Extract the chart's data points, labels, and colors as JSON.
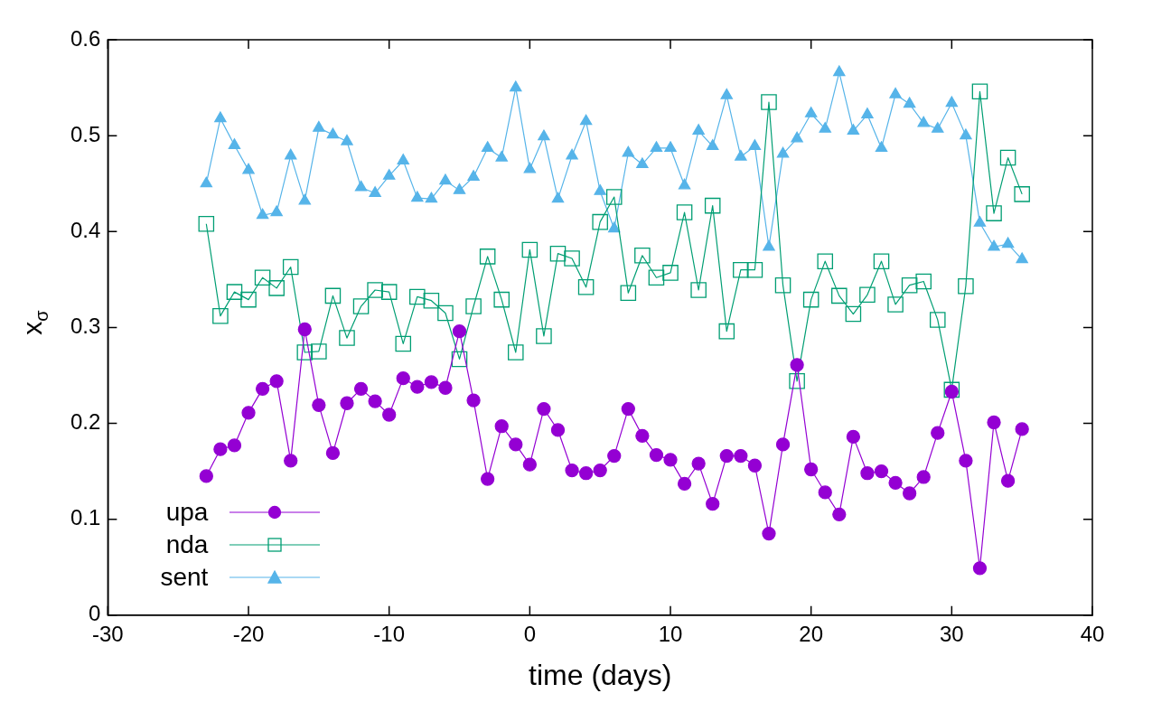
{
  "chart_data": {
    "type": "line",
    "xlabel": "time (days)",
    "ylabel": "x$_{σ}$",
    "x": [
      -23,
      -22,
      -21,
      -20,
      -19,
      -18,
      -17,
      -16,
      -15,
      -14,
      -13,
      -12,
      -11,
      -10,
      -9,
      -8,
      -7,
      -6,
      -5,
      -4,
      -3,
      -2,
      -1,
      0,
      1,
      2,
      3,
      4,
      5,
      6,
      7,
      8,
      9,
      10,
      11,
      12,
      13,
      14,
      15,
      16,
      17,
      18,
      19,
      20,
      21,
      22,
      23,
      24,
      25,
      26,
      27,
      28,
      29,
      30,
      31,
      32,
      33,
      34,
      35
    ],
    "series": [
      {
        "name": "upa",
        "color": "#9400d3",
        "marker": "circle",
        "values": [
          0.145,
          0.173,
          0.177,
          0.211,
          0.236,
          0.244,
          0.161,
          0.298,
          0.219,
          0.169,
          0.221,
          0.236,
          0.223,
          0.209,
          0.247,
          0.238,
          0.243,
          0.237,
          0.296,
          0.224,
          0.142,
          0.197,
          0.178,
          0.157,
          0.215,
          0.193,
          0.151,
          0.148,
          0.151,
          0.166,
          0.215,
          0.187,
          0.167,
          0.162,
          0.137,
          0.158,
          0.116,
          0.166,
          0.166,
          0.156,
          0.085,
          0.178,
          0.261,
          0.152,
          0.128,
          0.105,
          0.186,
          0.148,
          0.15,
          0.138,
          0.127,
          0.144,
          0.19,
          0.233,
          0.161,
          0.049,
          0.201,
          0.14,
          0.194
        ]
      },
      {
        "name": "nda",
        "color": "#009e73",
        "marker": "square",
        "values": [
          0.408,
          0.312,
          0.337,
          0.329,
          0.352,
          0.341,
          0.363,
          0.274,
          0.275,
          0.333,
          0.289,
          0.322,
          0.339,
          0.337,
          0.283,
          0.332,
          0.328,
          0.315,
          0.267,
          0.322,
          0.374,
          0.329,
          0.274,
          0.381,
          0.291,
          0.377,
          0.372,
          0.342,
          0.41,
          0.436,
          0.336,
          0.375,
          0.352,
          0.357,
          0.42,
          0.339,
          0.427,
          0.296,
          0.36,
          0.36,
          0.535,
          0.344,
          0.244,
          0.329,
          0.369,
          0.333,
          0.314,
          0.334,
          0.369,
          0.324,
          0.344,
          0.348,
          0.308,
          0.235,
          0.343,
          0.546,
          0.419,
          0.477,
          0.439
        ]
      },
      {
        "name": "sent",
        "color": "#56b4e9",
        "marker": "triangle",
        "values": [
          0.45,
          0.518,
          0.49,
          0.464,
          0.417,
          0.42,
          0.479,
          0.432,
          0.508,
          0.501,
          0.494,
          0.446,
          0.44,
          0.458,
          0.474,
          0.435,
          0.434,
          0.453,
          0.443,
          0.457,
          0.487,
          0.477,
          0.55,
          0.465,
          0.499,
          0.434,
          0.479,
          0.515,
          0.442,
          0.403,
          0.482,
          0.47,
          0.487,
          0.487,
          0.448,
          0.505,
          0.489,
          0.542,
          0.478,
          0.489,
          0.384,
          0.481,
          0.497,
          0.523,
          0.507,
          0.566,
          0.505,
          0.522,
          0.487,
          0.543,
          0.533,
          0.513,
          0.507,
          0.534,
          0.5,
          0.409,
          0.384,
          0.387,
          0.371
        ]
      }
    ],
    "xlim": [
      -30,
      40
    ],
    "xticks": [
      -30,
      -20,
      -10,
      0,
      10,
      20,
      30,
      40
    ],
    "ylim": [
      0,
      0.6
    ],
    "yticks": [
      0,
      0.1,
      0.2,
      0.3,
      0.4,
      0.5,
      0.6
    ],
    "grid": false,
    "legend": "bottom left",
    "line_style": "solid"
  }
}
